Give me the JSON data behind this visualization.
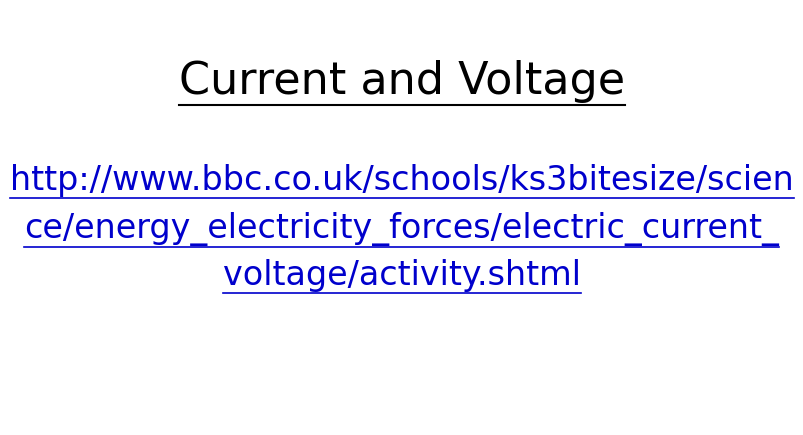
{
  "title": "Current and Voltage",
  "title_color": "#000000",
  "title_fontsize": 32,
  "url_line1": "http://www.bbc.co.uk/schools/ks3bitesize/scien",
  "url_line2": "ce/energy_electricity_forces/electric_current_",
  "url_line3": "voltage/activity.shtml",
  "url_color": "#0000CC",
  "url_fontsize": 24,
  "background_color": "#ffffff"
}
